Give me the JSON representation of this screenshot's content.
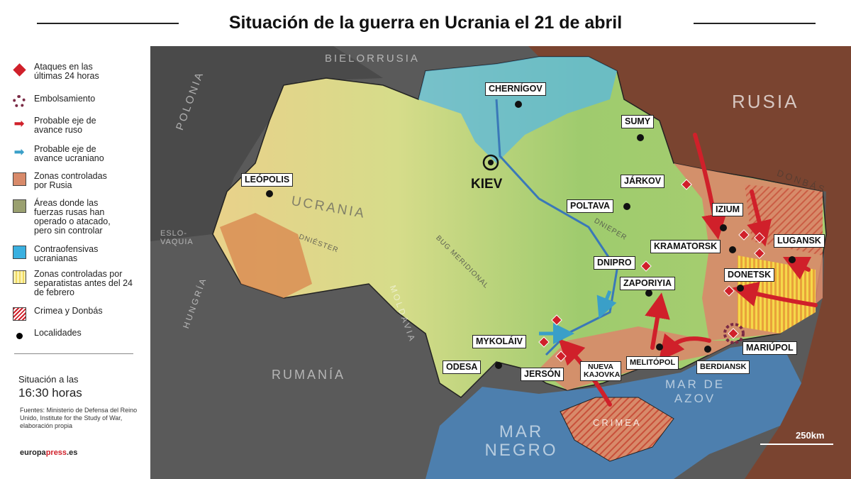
{
  "title": "Situación de la guerra en Ucrania el 21 de abril",
  "legend": [
    {
      "label": "Ataques en las últimas 24 horas",
      "icon": "red-diamond-icon",
      "color": "#d0202a"
    },
    {
      "label": "Embolsamiento",
      "icon": "dotted-circle-icon",
      "color": "#7a2a45"
    },
    {
      "label": "Probable eje de avance ruso",
      "icon": "red-arrow-icon",
      "color": "#d0202a"
    },
    {
      "label": "Probable eje de avance ucraniano",
      "icon": "blue-arrow-icon",
      "color": "#3a9fc8"
    },
    {
      "label": "Zonas controladas por Rusia",
      "icon": "swatch",
      "color": "#d88a6a"
    },
    {
      "label": "Áreas donde las fuerzas rusas han operado o atacado, pero sin controlar",
      "icon": "swatch",
      "color": "#9aa070"
    },
    {
      "label": "Contraofensivas ucranianas",
      "icon": "swatch",
      "color": "#3ab0e0"
    },
    {
      "label": "Zonas controladas por separatistas antes del 24 de febrero",
      "icon": "yellow-stripes",
      "color": "#f5e070"
    },
    {
      "label": "Crimea y Donbás",
      "icon": "red-hatch",
      "color": "#d0202a"
    },
    {
      "label": "Localidades",
      "icon": "black-dot-icon",
      "color": "#000000"
    }
  ],
  "situation": {
    "line1": "Situación a las",
    "line2": "16:30 horas"
  },
  "sources": "Fuentes: Ministerio de Defensa del Reino Unido, Institute for the Study of War, elaboración propia",
  "brand": {
    "part1": "europa",
    "part2": "press",
    "part3": ".es"
  },
  "map": {
    "countries": {
      "bielorrusia": "BIELORRUSIA",
      "polonia": "POLONIA",
      "eslovaquia": "ESLO-VAQUIA",
      "hungria": "HUNGRÍA",
      "rumania": "RUMANÍA",
      "moldavia": "MOLDAVIA",
      "rusia": "RUSIA",
      "ucrania": "UCRANIA"
    },
    "regions": {
      "donbas": "DONBÁS",
      "crimea": "CRIMEA"
    },
    "rivers": {
      "dniester": "DNIÉSTER",
      "bug": "BUG MERIDIONAL",
      "dnieper": "DNIEPER"
    },
    "seas": {
      "mar_negro": "MAR NEGRO",
      "mar_azov": "MAR DE AZOV"
    },
    "cities": {
      "kiev": "KIEV",
      "chernigov": "CHERNÍGOV",
      "sumy": "SUMY",
      "jarkov": "JÁRKOV",
      "poltava": "POLTAVA",
      "leopolis": "LEÓPOLIS",
      "izium": "IZIUM",
      "kramatorsk": "KRAMATORSK",
      "lugansk": "LUGANSK",
      "dnipro": "DNIPRO",
      "donetsk": "DONETSK",
      "zaporiyia": "ZAPORIYIA",
      "mykolaiv": "MYKOLÁIV",
      "odesa": "ODESA",
      "jerson": "JERSÓN",
      "nueva_kajovka": "NUEVA KAJOVKA",
      "melitopol": "MELITÓPOL",
      "berdiansk": "BERDIANSK",
      "mariupol": "MARIÚPOL"
    },
    "scale": "250km"
  }
}
